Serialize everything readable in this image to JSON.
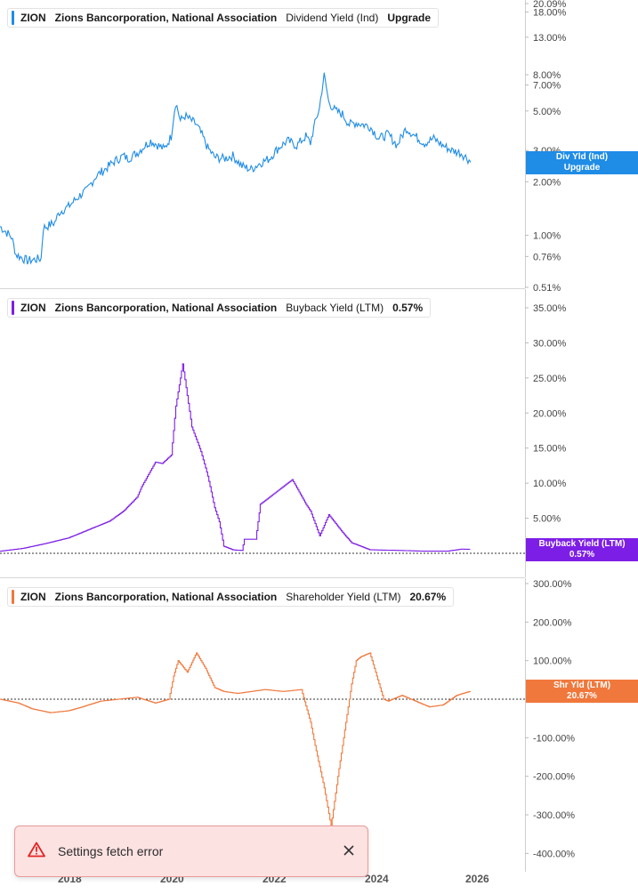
{
  "panels": [
    {
      "ticker": "ZION",
      "company": "Zions Bancorporation, National Association",
      "metric": "Dividend Yield (Ind)",
      "value": "Upgrade",
      "color": "#1f8ce6",
      "badge_line1": "Div Yld (Ind)",
      "badge_line2": "Upgrade"
    },
    {
      "ticker": "ZION",
      "company": "Zions Bancorporation, National Association",
      "metric": "Buyback Yield (LTM)",
      "value": "0.57%",
      "color": "#7d1ee6",
      "badge_line1": "Buyback Yield (LTM)",
      "badge_line2": "0.57%"
    },
    {
      "ticker": "ZION",
      "company": "Zions Bancorporation, National Association",
      "metric": "Shareholder Yield (LTM)",
      "value": "20.67%",
      "color": "#f0783c",
      "badge_line1": "Shr Yld (LTM)",
      "badge_line2": "20.67%"
    }
  ],
  "x_axis_labels": [
    "2018",
    "2020",
    "2022",
    "2024",
    "2026"
  ],
  "toast": {
    "message": "Settings fetch error",
    "icon": "warning-icon",
    "close_icon": "close-icon"
  },
  "chart_data": [
    {
      "type": "line",
      "title": "Dividend Yield (Ind)",
      "yscale": "log",
      "ylim": [
        0.51,
        20.09
      ],
      "ytick_labels": [
        "20.09%",
        "18.00%",
        "13.00%",
        "8.00%",
        "7.00%",
        "5.00%",
        "3.00%",
        "2.00%",
        "1.00%",
        "0.76%",
        "0.51%"
      ],
      "ytick_values": [
        20.09,
        18,
        13,
        8,
        7,
        5,
        3,
        2,
        1,
        0.76,
        0.51
      ],
      "xlim": [
        2016.2,
        2027.7
      ],
      "series": [
        {
          "name": "Dividend Yield (Ind)",
          "x": [
            2016.2,
            2016.45,
            2016.55,
            2016.8,
            2017.1,
            2017.15,
            2017.4,
            2017.5,
            2017.7,
            2018.0,
            2018.1,
            2018.3,
            2018.5,
            2018.7,
            2018.9,
            2019.0,
            2019.2,
            2019.5,
            2019.8,
            2019.95,
            2020.05,
            2020.15,
            2020.25,
            2020.5,
            2020.75,
            2020.9,
            2021.1,
            2021.3,
            2021.5,
            2021.7,
            2021.9,
            2022.1,
            2022.3,
            2022.5,
            2022.7,
            2022.9,
            2023.0,
            2023.2,
            2023.3,
            2023.4,
            2023.55,
            2023.7,
            2023.85,
            2024.0,
            2024.3,
            2024.5,
            2024.7,
            2024.9,
            2025.1,
            2025.3,
            2025.5,
            2025.7,
            2025.9,
            2026.1,
            2026.3,
            2026.5
          ],
          "y": [
            1.12,
            0.98,
            0.78,
            0.72,
            0.74,
            1.1,
            1.18,
            1.35,
            1.45,
            1.72,
            1.78,
            2.15,
            2.35,
            2.6,
            2.8,
            2.7,
            2.9,
            3.4,
            3.05,
            3.6,
            5.6,
            4.4,
            4.7,
            4.2,
            3.1,
            2.75,
            2.7,
            2.8,
            2.45,
            2.35,
            2.55,
            2.7,
            3.1,
            3.4,
            3.2,
            3.6,
            3.3,
            5.2,
            7.9,
            5.6,
            5.0,
            4.8,
            4.2,
            4.3,
            4.1,
            3.5,
            3.7,
            3.2,
            4.0,
            3.6,
            3.3,
            3.5,
            3.2,
            3.0,
            2.9,
            2.62
          ]
        }
      ]
    },
    {
      "type": "line",
      "title": "Buyback Yield (LTM)",
      "ylim": [
        0,
        35
      ],
      "ytick_labels": [
        "35.00%",
        "30.00%",
        "25.00%",
        "20.00%",
        "15.00%",
        "10.00%",
        "5.00%"
      ],
      "ytick_values": [
        35,
        30,
        25,
        20,
        15,
        10,
        5
      ],
      "reference_line": 0,
      "xlim": [
        2016.2,
        2027.7
      ],
      "series": [
        {
          "name": "Buyback Yield (LTM)",
          "x": [
            2016.2,
            2016.7,
            2017.2,
            2017.7,
            2018.0,
            2018.3,
            2018.6,
            2018.9,
            2019.2,
            2019.3,
            2019.6,
            2019.75,
            2019.95,
            2020.05,
            2020.2,
            2020.4,
            2020.6,
            2020.75,
            2020.9,
            2021.0,
            2021.1,
            2021.3,
            2021.5,
            2021.55,
            2021.8,
            2021.9,
            2022.2,
            2022.4,
            2022.6,
            2022.9,
            2023.0,
            2023.2,
            2023.4,
            2023.7,
            2023.9,
            2024.1,
            2024.3,
            2025.0,
            2025.5,
            2026.0,
            2026.3,
            2026.5
          ],
          "y": [
            0.3,
            0.7,
            1.4,
            2.2,
            3.0,
            3.8,
            4.6,
            6.0,
            8.0,
            9.5,
            13.0,
            12.8,
            14.0,
            21.0,
            27.0,
            18.0,
            14.5,
            11.0,
            6.5,
            4.5,
            1.0,
            0.5,
            0.4,
            2.0,
            2.0,
            7.0,
            8.5,
            9.5,
            10.5,
            7.0,
            6.0,
            2.5,
            5.5,
            3.0,
            1.5,
            1.0,
            0.5,
            0.4,
            0.3,
            0.3,
            0.6,
            0.57
          ]
        }
      ]
    },
    {
      "type": "line",
      "title": "Shareholder Yield (LTM)",
      "ylim": [
        -400,
        300
      ],
      "ytick_labels": [
        "300.00%",
        "200.00%",
        "100.00%",
        "-100.00%",
        "-200.00%",
        "-300.00%",
        "-400.00%"
      ],
      "ytick_values": [
        300,
        200,
        100,
        -100,
        -200,
        -300,
        -400
      ],
      "reference_line": 0,
      "xlim": [
        2016.2,
        2027.7
      ],
      "series": [
        {
          "name": "Shareholder Yield (LTM)",
          "x": [
            2016.2,
            2016.6,
            2016.9,
            2017.3,
            2017.7,
            2018.0,
            2018.4,
            2018.8,
            2019.2,
            2019.6,
            2019.9,
            2020.0,
            2020.1,
            2020.3,
            2020.5,
            2020.7,
            2020.9,
            2021.1,
            2021.4,
            2021.7,
            2022.0,
            2022.4,
            2022.8,
            2023.0,
            2023.1,
            2023.3,
            2023.45,
            2023.6,
            2023.75,
            2023.9,
            2024.0,
            2024.1,
            2024.3,
            2024.6,
            2024.7,
            2025.0,
            2025.3,
            2025.6,
            2025.9,
            2026.2,
            2026.5
          ],
          "y": [
            0,
            -10,
            -25,
            -35,
            -30,
            -20,
            -5,
            0,
            5,
            -10,
            0,
            60,
            100,
            70,
            120,
            80,
            30,
            20,
            15,
            20,
            25,
            20,
            25,
            -60,
            -120,
            -230,
            -330,
            -200,
            -80,
            40,
            100,
            110,
            120,
            0,
            -5,
            10,
            -5,
            -20,
            -15,
            10,
            20.67
          ]
        }
      ]
    }
  ]
}
